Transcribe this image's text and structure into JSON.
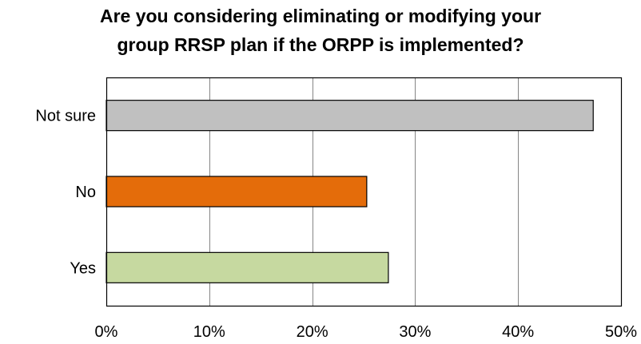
{
  "chart_data": {
    "type": "bar",
    "orientation": "horizontal",
    "title_lines": [
      "Are you considering eliminating or modifying your",
      "group RRSP plan if the ORPP is implemented?"
    ],
    "categories": [
      "Yes",
      "No",
      "Not sure"
    ],
    "values": [
      27.4,
      25.3,
      47.3
    ],
    "unit": "%",
    "bar_colors": [
      "#c6d9a0",
      "#e46c0a",
      "#c0c0c0"
    ],
    "xlim": [
      0,
      50
    ],
    "xticks": [
      0,
      10,
      20,
      30,
      40,
      50
    ],
    "xtick_labels": [
      "0%",
      "10%",
      "20%",
      "30%",
      "40%",
      "50%"
    ],
    "grid": "vertical",
    "legend": "none"
  }
}
